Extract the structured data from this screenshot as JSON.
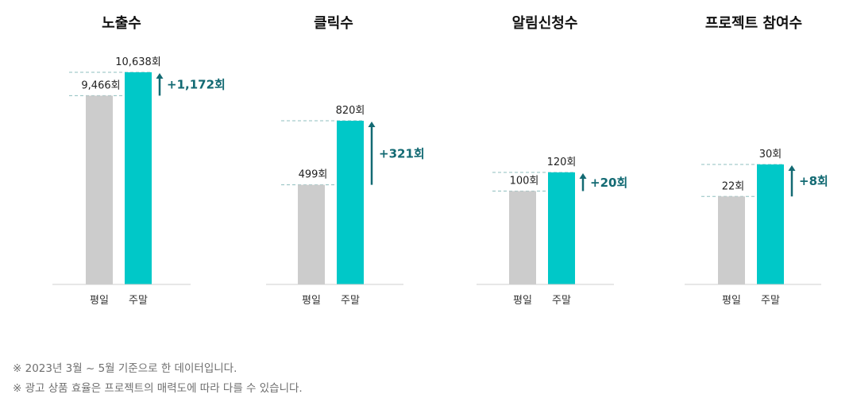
{
  "chart_data": [
    {
      "type": "bar",
      "title": "노출수",
      "categories": [
        "평일",
        "주말"
      ],
      "values": [
        9466,
        10638
      ],
      "value_labels": [
        "9,466회",
        "10,638회"
      ],
      "diff_label": "+1,172회"
    },
    {
      "type": "bar",
      "title": "클릭수",
      "categories": [
        "평일",
        "주말"
      ],
      "values": [
        499,
        820
      ],
      "value_labels": [
        "499회",
        "820회"
      ],
      "diff_label": "+321회"
    },
    {
      "type": "bar",
      "title": "알림신청수",
      "categories": [
        "평일",
        "주말"
      ],
      "values": [
        100,
        120
      ],
      "value_labels": [
        "100회",
        "120회"
      ],
      "diff_label": "+20회"
    },
    {
      "type": "bar",
      "title": "프로젝트 참여수",
      "categories": [
        "평일",
        "주말"
      ],
      "values": [
        22,
        30
      ],
      "value_labels": [
        "22회",
        "30회"
      ],
      "diff_label": "+8회"
    }
  ],
  "colors": {
    "weekday": "#cccccc",
    "weekend": "#00c8c8",
    "accent": "#136a73",
    "guide": "#8fbfbf",
    "axis": "#cfcfcf"
  },
  "footnotes": [
    "※ 2023년 3월 ~ 5월 기준으로 한 데이터입니다.",
    "※ 광고 상품 효율은 프로젝트의 매력도에 따라 다를 수 있습니다."
  ]
}
